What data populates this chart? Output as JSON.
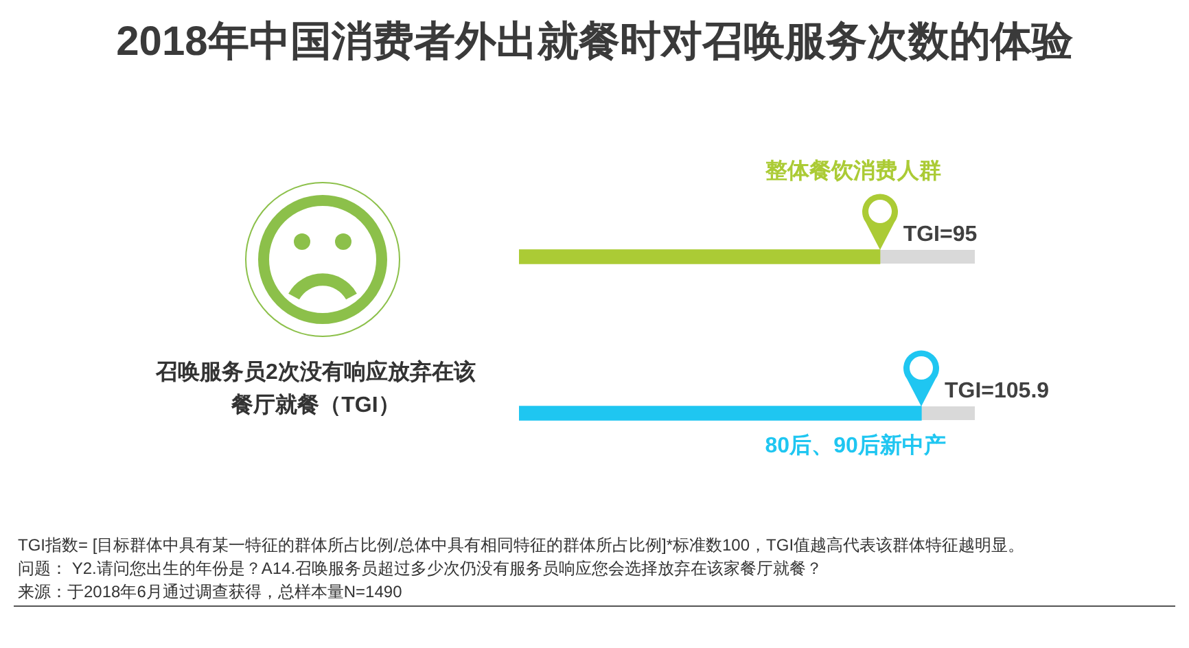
{
  "chart_data": {
    "type": "bar",
    "orientation": "horizontal",
    "title": "2018年中国消费者外出就餐时对召唤服务次数的体验",
    "subtitle": "召唤服务员2次没有响应放弃在该餐厅就餐（TGI）",
    "categories": [
      "整体餐饮消费人群",
      "80后、90后新中产"
    ],
    "values": [
      95,
      105.9
    ],
    "colors": [
      "#abcb35",
      "#1fc6f1"
    ],
    "value_labels": [
      "TGI=95",
      "TGI=105.9"
    ],
    "annotations": [
      "TGI指数= [目标群体中具有某一特征的群体所占比例/总体中具有相同特征的群体所占比例]*标准数100，TGI值越高代表该群体特征越明显。",
      "问题： Y2.请问您出生的年份是？A14.召唤服务员超过多少次仍没有服务员响应您会选择放弃在该家餐厅就餐？",
      "来源：于2018年6月通过调查获得，总样本量N=1490"
    ]
  }
}
